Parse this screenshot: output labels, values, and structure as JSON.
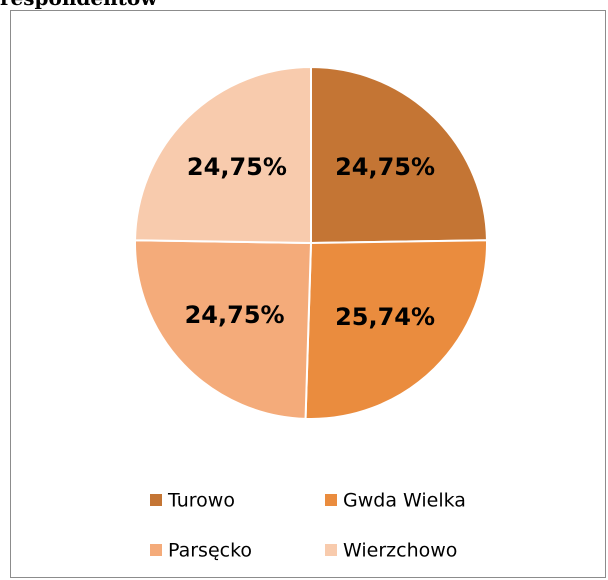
{
  "chart_data": {
    "type": "pie",
    "title": "respondentów",
    "categories": [
      "Turowo",
      "Gwda Wielka",
      "Parsęcko",
      "Wierzchowo"
    ],
    "values": [
      24.75,
      25.74,
      24.75,
      24.75
    ],
    "value_labels": [
      "24,75%",
      "25,74%",
      "24,75%",
      "24,75%"
    ],
    "colors": [
      "#c47534",
      "#ea8c3e",
      "#f4ab7a",
      "#f8cbad"
    ],
    "legend": "bottom"
  }
}
